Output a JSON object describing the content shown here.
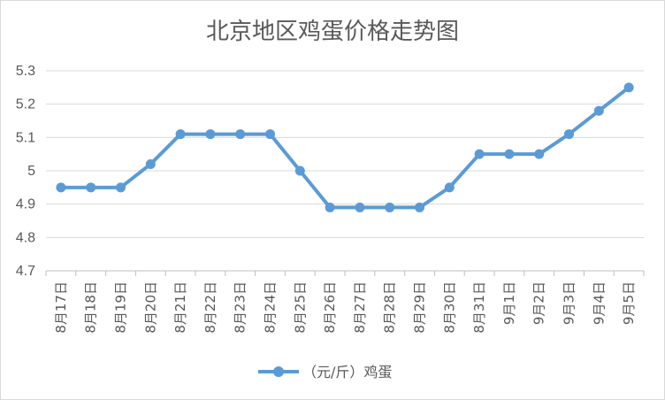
{
  "chart_data": {
    "type": "line",
    "title": "北京地区鸡蛋价格走势图",
    "xlabel": "",
    "ylabel": "",
    "ylim": [
      4.7,
      5.3
    ],
    "yticks": [
      "4.7",
      "4.8",
      "4.9",
      "5",
      "5.1",
      "5.2",
      "5.3"
    ],
    "categories": [
      "8月17日",
      "8月18日",
      "8月19日",
      "8月20日",
      "8月21日",
      "8月22日",
      "8月23日",
      "8月24日",
      "8月25日",
      "8月26日",
      "8月27日",
      "8月28日",
      "8月29日",
      "8月30日",
      "8月31日",
      "9月1日",
      "9月2日",
      "9月3日",
      "9月4日",
      "9月5日"
    ],
    "series": [
      {
        "name": "（元/斤）鸡蛋",
        "color": "#5b9bd5",
        "values": [
          4.95,
          4.95,
          4.95,
          5.02,
          5.11,
          5.11,
          5.11,
          5.11,
          5.0,
          4.89,
          4.89,
          4.89,
          4.89,
          4.95,
          5.05,
          5.05,
          5.05,
          5.11,
          5.18,
          5.25
        ]
      }
    ],
    "grid": true,
    "legend_position": "bottom"
  }
}
